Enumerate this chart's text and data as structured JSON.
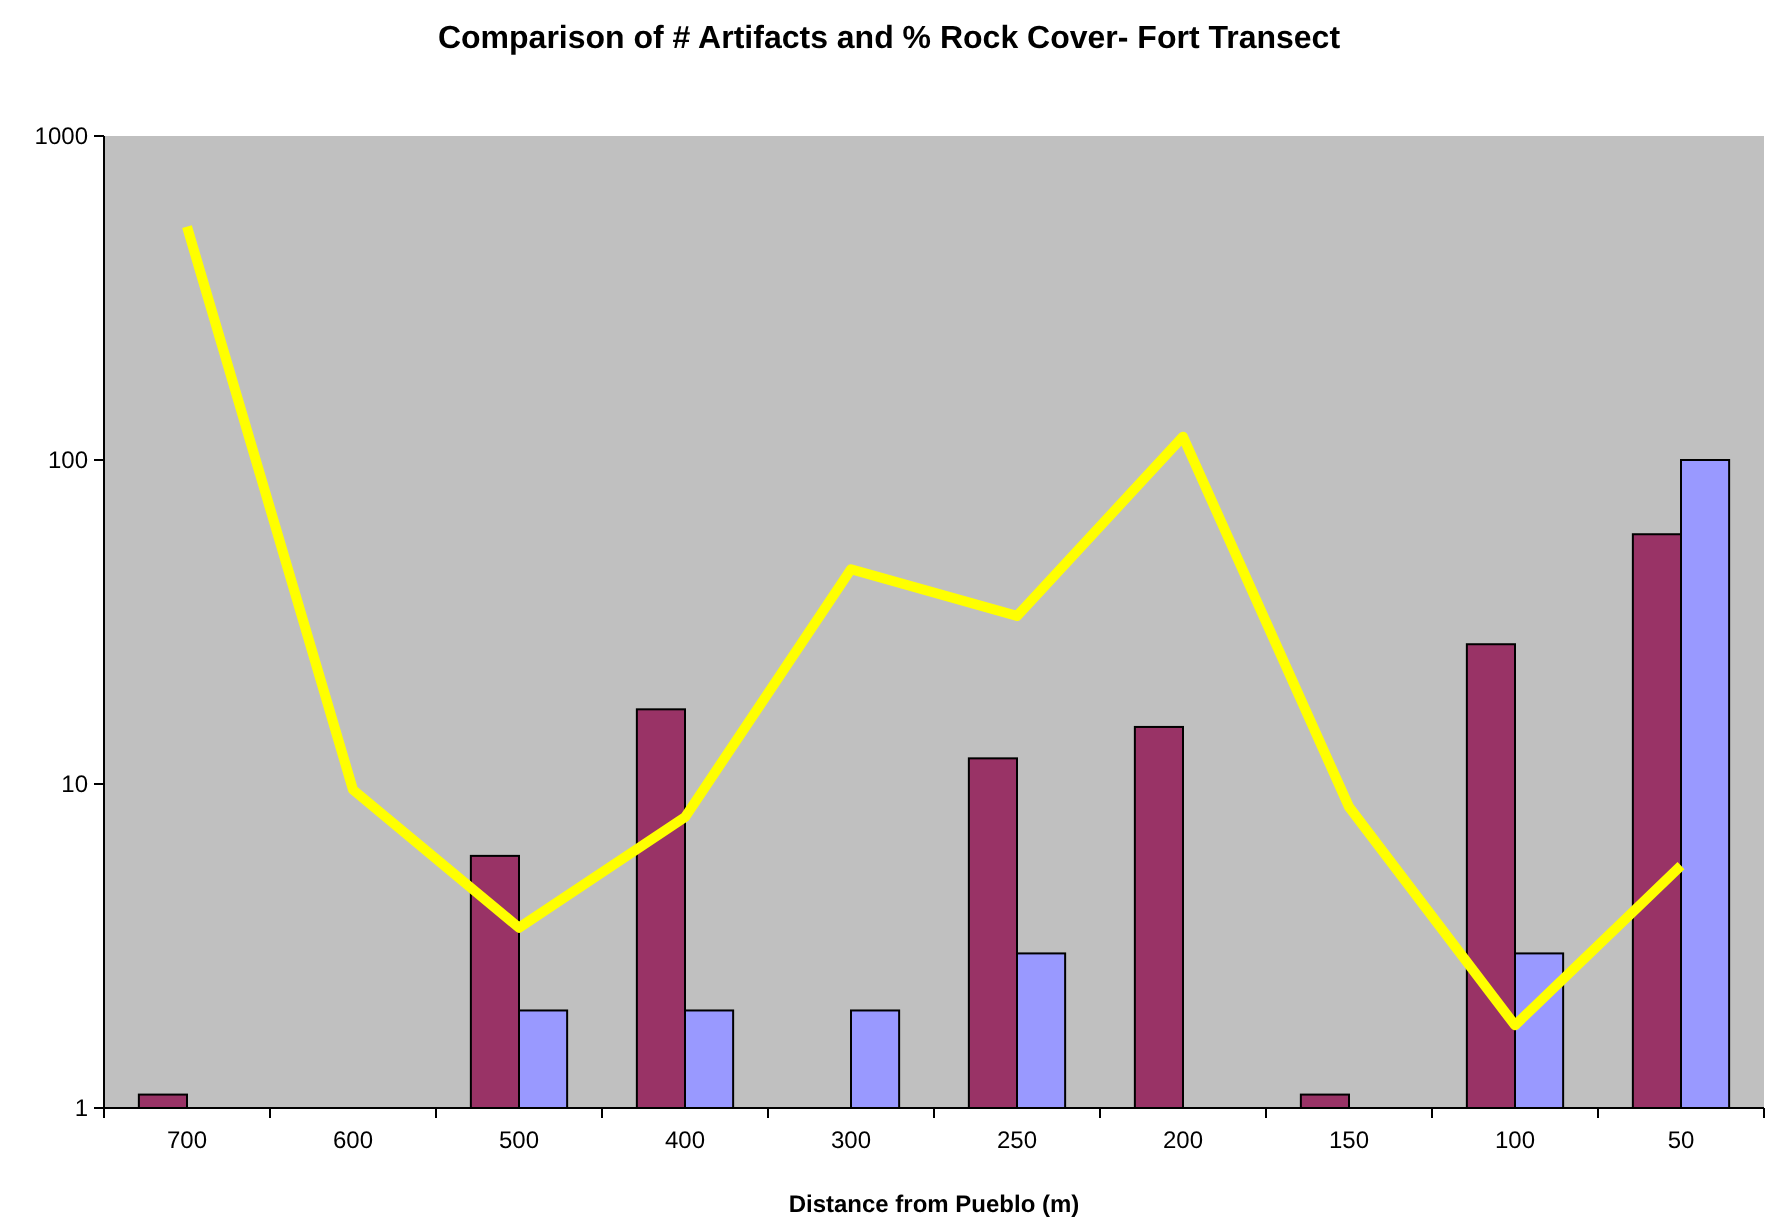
{
  "chart_data": {
    "type": "bar",
    "title": "Comparison of # Artifacts and % Rock Cover- Fort Transect",
    "xlabel": "Distance from Pueblo (m)",
    "categories": [
      "700",
      "600",
      "500",
      "400",
      "300",
      "250",
      "200",
      "150",
      "100",
      "50"
    ],
    "log": true,
    "ylim": [
      1,
      1000
    ],
    "yticks": [
      1,
      10,
      100,
      1000
    ],
    "grid": false,
    "series": [
      {
        "color": "#993366",
        "values": [
          1.1,
          null,
          6,
          17,
          null,
          12,
          15,
          1.1,
          27,
          59
        ]
      },
      {
        "color": "#9999ff",
        "values": [
          null,
          null,
          2,
          2,
          2,
          3,
          null,
          null,
          3,
          100
        ]
      },
      {
        "type": "line",
        "color": "#ffff00",
        "line_style": "solid",
        "marker": "none",
        "values": [
          525,
          9.6,
          3.6,
          7.9,
          46,
          33,
          118,
          8.5,
          1.8,
          5.6
        ]
      }
    ]
  }
}
